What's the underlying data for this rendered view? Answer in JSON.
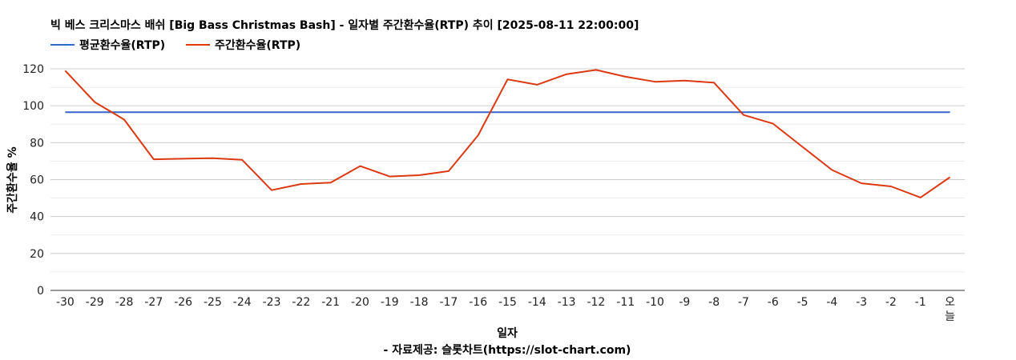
{
  "chart_data": {
    "type": "line",
    "title": "빅 베스 크리스마스 배쉬 [Big Bass Christmas Bash] - 일자별 주간환수율(RTP) 추이 [2025-08-11 22:00:00]",
    "xlabel": "일자",
    "ylabel": "주간환수율 %",
    "source_note": "- 자료제공: 슬롯차트(https://slot-chart.com)",
    "categories": [
      "-30",
      "-29",
      "-28",
      "-27",
      "-26",
      "-25",
      "-24",
      "-23",
      "-22",
      "-21",
      "-20",
      "-19",
      "-18",
      "-17",
      "-16",
      "-15",
      "-14",
      "-13",
      "-12",
      "-11",
      "-10",
      "-9",
      "-8",
      "-7",
      "-6",
      "-5",
      "-4",
      "-3",
      "-2",
      "-1",
      "오늘"
    ],
    "ylim": [
      0,
      120
    ],
    "yticks": [
      0,
      20,
      40,
      60,
      80,
      100,
      120
    ],
    "grid": true,
    "legend_position": "top-left",
    "series": [
      {
        "name": "평균환수율(RTP)",
        "color": "#3366cc",
        "values": [
          96.5,
          96.5,
          96.5,
          96.5,
          96.5,
          96.5,
          96.5,
          96.5,
          96.5,
          96.5,
          96.5,
          96.5,
          96.5,
          96.5,
          96.5,
          96.5,
          96.5,
          96.5,
          96.5,
          96.5,
          96.5,
          96.5,
          96.5,
          96.5,
          96.5,
          96.5,
          96.5,
          96.5,
          96.5,
          96.5,
          96.5
        ]
      },
      {
        "name": "주간환수율(RTP)",
        "color": "#dc3912",
        "values": [
          119,
          102,
          92.5,
          71,
          71.3,
          71.6,
          70.7,
          54.3,
          57.6,
          58.4,
          67.3,
          61.7,
          62.4,
          64.6,
          84,
          114.3,
          111.4,
          117.1,
          119.4,
          115.7,
          113,
          113.6,
          112.5,
          95,
          90.3,
          77.7,
          65.2,
          58,
          56.3,
          50.3,
          61.3
        ]
      }
    ]
  }
}
